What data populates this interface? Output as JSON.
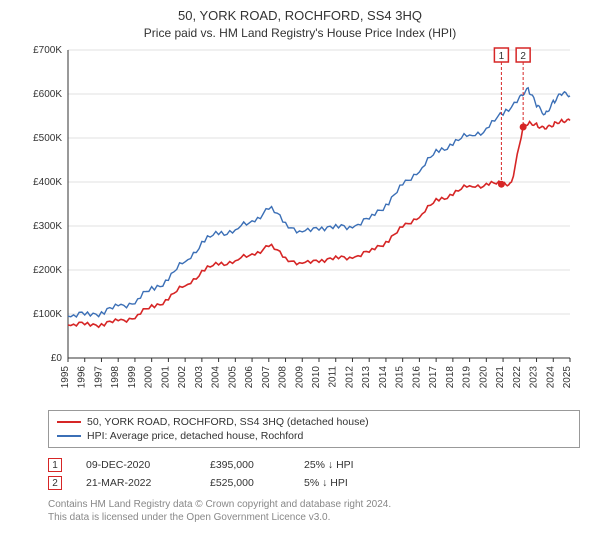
{
  "title": "50, YORK ROAD, ROCHFORD, SS4 3HQ",
  "subtitle": "Price paid vs. HM Land Registry's House Price Index (HPI)",
  "chart": {
    "type": "line",
    "background_color": "#ffffff",
    "grid_color": "#e0e0e0",
    "axis_color": "#333333",
    "font_family": "Arial",
    "title_fontsize": 13,
    "label_fontsize": 10,
    "x": {
      "min": 1995,
      "max": 2025,
      "ticks": [
        1995,
        1996,
        1997,
        1998,
        1999,
        2000,
        2001,
        2002,
        2003,
        2004,
        2005,
        2006,
        2007,
        2008,
        2009,
        2010,
        2011,
        2012,
        2013,
        2014,
        2015,
        2016,
        2017,
        2018,
        2019,
        2020,
        2021,
        2022,
        2023,
        2024,
        2025
      ]
    },
    "y": {
      "min": 0,
      "max": 700000,
      "tick_step": 100000,
      "labels": [
        "£0",
        "£100K",
        "£200K",
        "£300K",
        "£400K",
        "£500K",
        "£600K",
        "£700K"
      ]
    },
    "series": [
      {
        "id": "price_paid",
        "label": "50, YORK ROAD, ROCHFORD, SS4 3HQ (detached house)",
        "color": "#d62626",
        "line_width": 1.6,
        "points": [
          [
            1995.0,
            75000
          ],
          [
            1996.0,
            76000
          ],
          [
            1997.0,
            78000
          ],
          [
            1998.0,
            82000
          ],
          [
            1999.0,
            95000
          ],
          [
            2000.0,
            115000
          ],
          [
            2001.0,
            135000
          ],
          [
            2002.0,
            165000
          ],
          [
            2003.0,
            195000
          ],
          [
            2004.0,
            215000
          ],
          [
            2005.0,
            220000
          ],
          [
            2006.0,
            235000
          ],
          [
            2007.0,
            255000
          ],
          [
            2008.0,
            230000
          ],
          [
            2009.0,
            210000
          ],
          [
            2010.0,
            225000
          ],
          [
            2011.0,
            225000
          ],
          [
            2012.0,
            230000
          ],
          [
            2013.0,
            240000
          ],
          [
            2014.0,
            265000
          ],
          [
            2015.0,
            295000
          ],
          [
            2016.0,
            325000
          ],
          [
            2017.0,
            355000
          ],
          [
            2018.0,
            375000
          ],
          [
            2019.0,
            390000
          ],
          [
            2020.0,
            395000
          ],
          [
            2020.9,
            395000
          ],
          [
            2021.0,
            395000
          ],
          [
            2021.5,
            400000
          ],
          [
            2022.2,
            525000
          ],
          [
            2022.5,
            530000
          ],
          [
            2023.0,
            530000
          ],
          [
            2023.5,
            525000
          ],
          [
            2024.0,
            530000
          ],
          [
            2024.5,
            535000
          ],
          [
            2025.0,
            540000
          ]
        ],
        "markers": [
          {
            "box_number": "1",
            "x": 2020.9,
            "y": 395000,
            "date": "09-DEC-2020",
            "price": "£395,000",
            "delta": "25% ↓ HPI"
          },
          {
            "box_number": "2",
            "x": 2022.2,
            "y": 525000,
            "date": "21-MAR-2022",
            "price": "£525,000",
            "delta": "5% ↓ HPI"
          }
        ]
      },
      {
        "id": "hpi",
        "label": "HPI: Average price, detached house, Rochford",
        "color": "#3b6fb6",
        "line_width": 1.4,
        "points": [
          [
            1995.0,
            95000
          ],
          [
            1996.0,
            98000
          ],
          [
            1997.0,
            105000
          ],
          [
            1998.0,
            115000
          ],
          [
            1999.0,
            130000
          ],
          [
            2000.0,
            155000
          ],
          [
            2001.0,
            180000
          ],
          [
            2002.0,
            220000
          ],
          [
            2003.0,
            260000
          ],
          [
            2004.0,
            285000
          ],
          [
            2005.0,
            290000
          ],
          [
            2006.0,
            310000
          ],
          [
            2007.0,
            340000
          ],
          [
            2008.0,
            310000
          ],
          [
            2009.0,
            280000
          ],
          [
            2010.0,
            300000
          ],
          [
            2011.0,
            295000
          ],
          [
            2012.0,
            300000
          ],
          [
            2013.0,
            315000
          ],
          [
            2014.0,
            350000
          ],
          [
            2015.0,
            390000
          ],
          [
            2016.0,
            430000
          ],
          [
            2017.0,
            465000
          ],
          [
            2018.0,
            490000
          ],
          [
            2019.0,
            505000
          ],
          [
            2020.0,
            520000
          ],
          [
            2021.0,
            555000
          ],
          [
            2022.0,
            595000
          ],
          [
            2022.5,
            605000
          ],
          [
            2023.0,
            575000
          ],
          [
            2023.5,
            560000
          ],
          [
            2024.0,
            580000
          ],
          [
            2024.5,
            595000
          ],
          [
            2025.0,
            600000
          ]
        ]
      }
    ]
  },
  "legend": {
    "border_color": "#999999",
    "rows": [
      {
        "color": "#d62626",
        "label": "50, YORK ROAD, ROCHFORD, SS4 3HQ (detached house)"
      },
      {
        "color": "#3b6fb6",
        "label": "HPI: Average price, detached house, Rochford"
      }
    ]
  },
  "attribution": {
    "line1": "Contains HM Land Registry data © Crown copyright and database right 2024.",
    "line2": "This data is licensed under the Open Government Licence v3.0."
  }
}
